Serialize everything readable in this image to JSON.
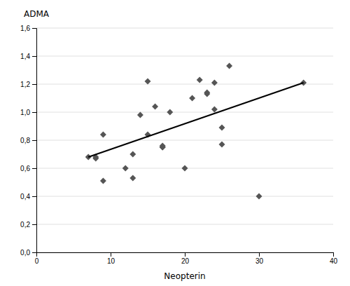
{
  "chart_data": {
    "type": "scatter",
    "xlabel": "Neopterin",
    "ylabel": "ADMA",
    "xlim": [
      0,
      40
    ],
    "ylim": [
      0.0,
      1.6
    ],
    "xticks": [
      0,
      10,
      20,
      30,
      40
    ],
    "yticks": [
      {
        "value": 0.0,
        "label": "0,0"
      },
      {
        "value": 0.2,
        "label": "0,2"
      },
      {
        "value": 0.4,
        "label": "0,4"
      },
      {
        "value": 0.6,
        "label": "0,6"
      },
      {
        "value": 0.8,
        "label": "0,8"
      },
      {
        "value": 1.0,
        "label": "1,0"
      },
      {
        "value": 1.2,
        "label": "1,2"
      },
      {
        "value": 1.4,
        "label": "1,4"
      },
      {
        "value": 1.6,
        "label": "1,6"
      }
    ],
    "grid": true,
    "series": [
      {
        "type": "scatter",
        "color": "#555555",
        "marker": "diamond",
        "x": [
          7,
          8,
          8,
          9,
          9,
          12,
          13,
          13,
          14,
          15,
          15,
          16,
          17,
          17,
          17,
          18,
          20,
          21,
          22,
          23,
          23,
          24,
          24,
          25,
          25,
          26,
          30,
          36
        ],
        "values": [
          0.68,
          0.68,
          0.67,
          0.51,
          0.84,
          0.6,
          0.53,
          0.7,
          0.98,
          1.22,
          0.84,
          1.04,
          0.75,
          0.75,
          0.76,
          1.0,
          0.6,
          1.1,
          1.23,
          1.14,
          1.13,
          1.02,
          1.21,
          0.89,
          0.77,
          1.33,
          0.4,
          1.21
        ]
      },
      {
        "type": "line",
        "color": "#000000",
        "line_style": "solid",
        "x": [
          7,
          36
        ],
        "values": [
          0.68,
          1.21
        ]
      }
    ]
  }
}
